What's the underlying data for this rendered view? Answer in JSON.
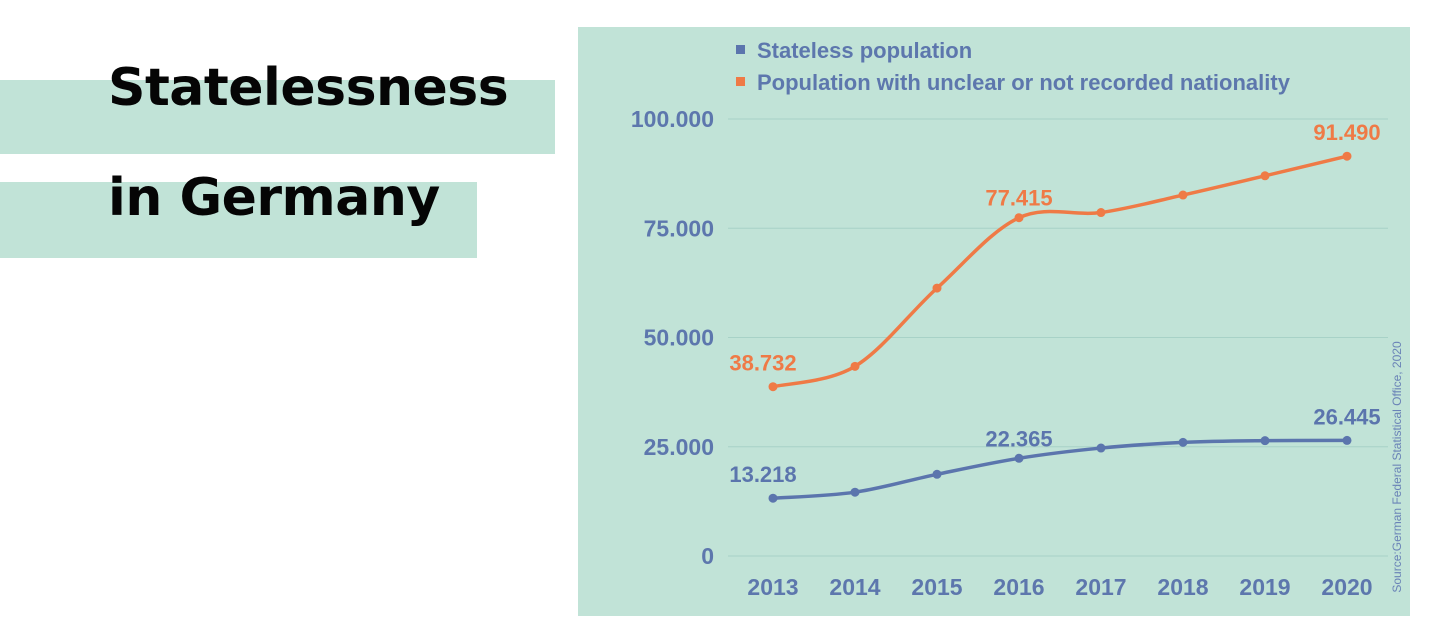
{
  "heading": {
    "line1": "Statelessness",
    "line2": "in Germany"
  },
  "source": "Source:German Federal Statistical Office, 2020",
  "colors": {
    "background_band": "#c1e3d7",
    "title_text": "#050505",
    "axis_text": "#5d77ad",
    "stateless": "#5b75ad",
    "unclear": "#ef7a46",
    "gridline": "#a8d2c7"
  },
  "chart_data": {
    "type": "line",
    "x": [
      "2013",
      "2014",
      "2015",
      "2016",
      "2017",
      "2018",
      "2019",
      "2020"
    ],
    "ylim": [
      0,
      100000
    ],
    "y_ticks": [
      {
        "value": 0,
        "label": "0"
      },
      {
        "value": 25000,
        "label": "25.000"
      },
      {
        "value": 50000,
        "label": "50.000"
      },
      {
        "value": 75000,
        "label": "75.000"
      },
      {
        "value": 100000,
        "label": "100.000"
      }
    ],
    "grid": true,
    "legend_position": "top",
    "series": [
      {
        "name": "Stateless population",
        "color": "#5b75ad",
        "values": [
          13218,
          14600,
          18700,
          22365,
          24700,
          26000,
          26400,
          26445
        ],
        "data_labels": [
          {
            "index": 0,
            "text": "13.218"
          },
          {
            "index": 3,
            "text": "22.365"
          },
          {
            "index": 7,
            "text": "26.445"
          }
        ]
      },
      {
        "name": "Population with unclear or not recorded nationality",
        "color": "#ef7a46",
        "values": [
          38732,
          43400,
          61300,
          77415,
          78600,
          82600,
          87000,
          91490
        ],
        "data_labels": [
          {
            "index": 0,
            "text": "38.732"
          },
          {
            "index": 3,
            "text": "77.415"
          },
          {
            "index": 7,
            "text": "91.490"
          }
        ]
      }
    ]
  }
}
